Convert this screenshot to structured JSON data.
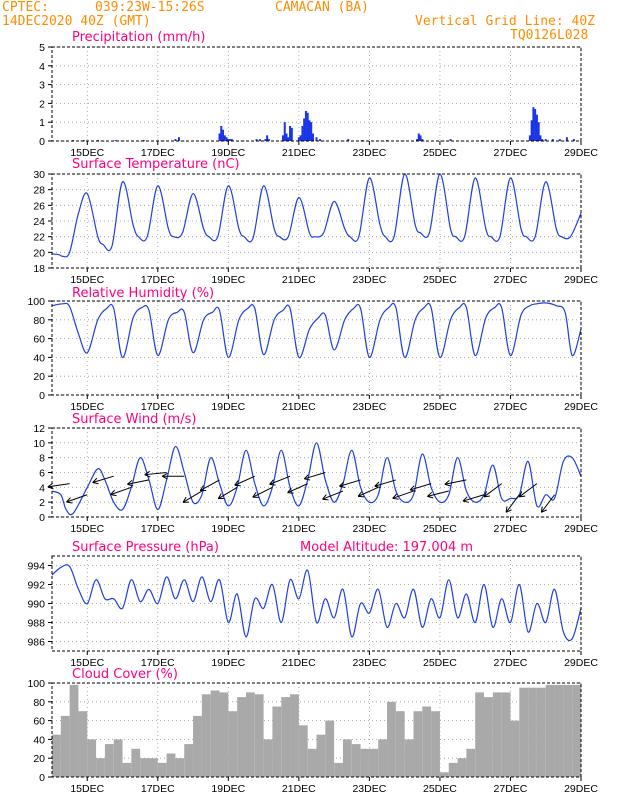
{
  "header": {
    "center": "CPTEC:",
    "coords": "039:23W-15:26S",
    "location": "CAMACAN (BA)",
    "run": "14DEC2020 40Z (GMT)",
    "grid_note": "Vertical Grid Line: 40Z",
    "product_code": "TQ0126L028"
  },
  "colors": {
    "line": "#1f3fe0",
    "bars_precip": "#1a35e8",
    "bars_cloud": "#a9a9a9",
    "header": "#ff8c00",
    "titles": "#ff0080"
  },
  "x_axis": {
    "labels": [
      "15DEC",
      "17DEC",
      "19DEC",
      "21DEC",
      "23DEC",
      "25DEC",
      "27DEC",
      "29DEC"
    ],
    "label_days": [
      15,
      17,
      19,
      21,
      23,
      25,
      27,
      29
    ],
    "day_start": 14.0,
    "day_end": 29.0
  },
  "chart_data": [
    {
      "type": "bar",
      "title": "Precipitation (mm/h)",
      "ylim": [
        0,
        5
      ],
      "yticks": [
        0,
        1,
        2,
        3,
        4,
        5
      ],
      "days": [
        14.6,
        14.9,
        15.3,
        15.8,
        16.6,
        17.5,
        17.6,
        18.75,
        18.8,
        18.85,
        18.9,
        18.95,
        19.0,
        19.05,
        19.1,
        19.8,
        19.9,
        20.05,
        20.1,
        20.15,
        20.55,
        20.6,
        20.65,
        20.7,
        20.75,
        20.8,
        21.0,
        21.05,
        21.1,
        21.15,
        21.2,
        21.25,
        21.3,
        21.35,
        21.4,
        21.5,
        21.6,
        22.4,
        22.8,
        23.5,
        24.35,
        24.4,
        24.45,
        24.5,
        25.3,
        26.2,
        27.55,
        27.6,
        27.65,
        27.7,
        27.75,
        27.8,
        27.85,
        27.9,
        28.0,
        28.2,
        28.4,
        28.6,
        28.8
      ],
      "values": [
        0.05,
        0.05,
        0.05,
        0.05,
        0.05,
        0.1,
        0.2,
        0.4,
        0.8,
        0.6,
        0.3,
        0.2,
        0.1,
        0.1,
        0.1,
        0.1,
        0.1,
        0.1,
        0.3,
        0.1,
        0.3,
        1.0,
        0.4,
        0.2,
        0.8,
        0.7,
        0.2,
        0.3,
        0.8,
        1.2,
        1.6,
        1.5,
        1.1,
        1.0,
        0.4,
        0.2,
        0.1,
        0.1,
        0.05,
        0.05,
        0.1,
        0.4,
        0.3,
        0.1,
        0.1,
        0.05,
        0.3,
        1.1,
        1.8,
        1.7,
        1.4,
        1.0,
        0.3,
        0.1,
        0.1,
        0.1,
        0.1,
        0.2,
        0.1
      ]
    },
    {
      "type": "line",
      "title": "Surface Temperature (nC)",
      "ylim": [
        18,
        30
      ],
      "yticks": [
        18,
        20,
        22,
        24,
        26,
        28,
        30
      ],
      "days": [
        14.0,
        14.2,
        14.3,
        14.5,
        14.75,
        15.0,
        15.3,
        15.45,
        15.7,
        16.0,
        16.3,
        16.45,
        16.7,
        17.0,
        17.3,
        17.45,
        17.7,
        18.0,
        18.3,
        18.45,
        18.7,
        19.0,
        19.3,
        19.45,
        19.7,
        20.0,
        20.3,
        20.45,
        20.7,
        21.0,
        21.3,
        21.45,
        21.7,
        22.0,
        22.3,
        22.45,
        22.7,
        23.0,
        23.3,
        23.45,
        23.7,
        24.0,
        24.3,
        24.45,
        24.7,
        25.0,
        25.3,
        25.45,
        25.7,
        26.0,
        26.3,
        26.45,
        26.7,
        27.0,
        27.3,
        27.45,
        27.7,
        28.0,
        28.3,
        28.45,
        28.7,
        29.0
      ],
      "values": [
        19.8,
        19.7,
        19.5,
        20.0,
        25.0,
        27.5,
        22.0,
        21.0,
        20.8,
        29.0,
        23.5,
        22.0,
        22.0,
        28.5,
        23.0,
        22.0,
        22.5,
        27.5,
        23.0,
        22.0,
        22.0,
        28.5,
        23.0,
        22.0,
        21.8,
        28.5,
        23.0,
        22.0,
        22.0,
        27.0,
        22.5,
        22.0,
        22.5,
        26.5,
        23.0,
        22.0,
        22.0,
        29.5,
        23.5,
        22.0,
        22.0,
        30.0,
        23.5,
        22.5,
        22.5,
        30.0,
        23.0,
        22.0,
        22.0,
        29.5,
        23.0,
        22.0,
        22.0,
        29.5,
        23.0,
        22.0,
        22.0,
        29.0,
        23.0,
        22.0,
        22.0,
        25.0
      ]
    },
    {
      "type": "line",
      "title": "Relative Humidity (%)",
      "ylim": [
        0,
        100
      ],
      "yticks": [
        0,
        20,
        40,
        60,
        80,
        100
      ],
      "days": [
        14.0,
        14.3,
        14.5,
        14.75,
        15.0,
        15.3,
        15.55,
        15.75,
        16.0,
        16.3,
        16.55,
        16.75,
        17.0,
        17.3,
        17.55,
        17.75,
        18.0,
        18.3,
        18.55,
        18.75,
        19.0,
        19.3,
        19.55,
        19.75,
        20.0,
        20.3,
        20.55,
        20.75,
        21.0,
        21.3,
        21.55,
        21.75,
        22.0,
        22.3,
        22.55,
        22.75,
        23.0,
        23.3,
        23.55,
        23.75,
        24.0,
        24.3,
        24.55,
        24.75,
        25.0,
        25.3,
        25.55,
        25.75,
        26.0,
        26.3,
        26.55,
        26.75,
        27.0,
        27.3,
        27.55,
        27.75,
        28.0,
        28.3,
        28.55,
        28.75,
        29.0
      ],
      "values": [
        95,
        97,
        94,
        65,
        45,
        80,
        92,
        92,
        40,
        82,
        93,
        90,
        42,
        80,
        88,
        88,
        45,
        80,
        88,
        90,
        40,
        80,
        92,
        92,
        43,
        80,
        90,
        92,
        40,
        70,
        82,
        85,
        48,
        80,
        92,
        92,
        40,
        80,
        93,
        93,
        40,
        80,
        93,
        93,
        40,
        80,
        93,
        93,
        42,
        82,
        93,
        93,
        42,
        85,
        95,
        97,
        98,
        95,
        88,
        42,
        70
      ]
    },
    {
      "type": "line",
      "title": "Surface Wind (m/s)",
      "ylim": [
        0,
        12
      ],
      "yticks": [
        0,
        2,
        4,
        6,
        8,
        10,
        12
      ],
      "days": [
        14.0,
        14.25,
        14.4,
        14.6,
        15.0,
        15.3,
        15.5,
        15.75,
        16.0,
        16.25,
        16.5,
        16.75,
        17.0,
        17.25,
        17.5,
        17.75,
        18.0,
        18.25,
        18.5,
        18.75,
        19.0,
        19.25,
        19.5,
        19.75,
        20.0,
        20.25,
        20.5,
        20.75,
        21.0,
        21.25,
        21.5,
        21.75,
        22.0,
        22.25,
        22.5,
        22.75,
        23.0,
        23.25,
        23.5,
        23.75,
        24.0,
        24.25,
        24.5,
        24.75,
        25.0,
        25.25,
        25.5,
        25.75,
        26.0,
        26.25,
        26.5,
        26.75,
        27.0,
        27.25,
        27.5,
        27.75,
        28.0,
        28.25,
        28.5,
        28.75,
        29.0
      ],
      "values": [
        3.5,
        3.0,
        1.0,
        0.5,
        4.0,
        6.5,
        5.0,
        2.0,
        1.0,
        4.0,
        8.0,
        5.0,
        1.0,
        5.0,
        9.5,
        6.0,
        2.0,
        3.0,
        8.0,
        4.5,
        1.5,
        4.0,
        9.0,
        4.5,
        1.5,
        4.0,
        9.0,
        4.0,
        1.5,
        5.0,
        10.0,
        5.0,
        2.0,
        4.5,
        9.0,
        4.0,
        2.0,
        3.0,
        8.0,
        3.5,
        2.0,
        3.0,
        8.5,
        4.0,
        2.0,
        3.0,
        8.0,
        3.5,
        2.0,
        3.0,
        7.0,
        2.5,
        2.5,
        3.0,
        7.5,
        1.5,
        3.0,
        2.5,
        7.5,
        8.0,
        5.5
      ],
      "vectors": {
        "days": [
          14.5,
          15.0,
          15.75,
          16.25,
          16.75,
          17.25,
          17.75,
          18.25,
          18.75,
          19.25,
          19.75,
          20.25,
          20.75,
          21.25,
          21.75,
          22.25,
          22.75,
          23.25,
          23.75,
          24.25,
          24.75,
          25.25,
          25.75,
          26.25,
          26.75,
          27.25,
          27.75,
          28.25
        ],
        "speed": [
          4.5,
          3.0,
          5.5,
          4.0,
          5.0,
          6.0,
          5.5,
          3.5,
          5.0,
          4.0,
          5.5,
          4.0,
          5.5,
          4.5,
          6.0,
          3.5,
          5.0,
          4.0,
          5.0,
          3.5,
          4.5,
          3.5,
          5.0,
          3.0,
          4.5,
          3.0,
          4.5,
          3.0
        ],
        "dx": [
          -1,
          -1,
          -1,
          -1,
          -1,
          -1,
          -1,
          -1,
          -1,
          -1,
          -1,
          -1,
          -1,
          -1,
          -1,
          -1,
          -1,
          -1,
          -1,
          -1,
          -1,
          -1,
          -1,
          -1,
          -0.8,
          -0.6,
          -0.8,
          -0.6
        ],
        "dy": [
          -0.15,
          -0.35,
          -0.3,
          -0.35,
          -0.2,
          -0.1,
          0.0,
          -0.6,
          -0.55,
          -0.6,
          -0.45,
          -0.5,
          -0.4,
          -0.45,
          -0.3,
          -0.4,
          -0.3,
          -0.45,
          -0.3,
          -0.35,
          -0.3,
          -0.25,
          -0.2,
          -0.3,
          -0.6,
          -0.8,
          -0.6,
          -0.8
        ]
      }
    },
    {
      "type": "line",
      "title": "Surface Pressure (hPa)",
      "subtitle": "Model Altitude: 197.004 m",
      "ylim": [
        985,
        995
      ],
      "yticks": [
        986,
        988,
        990,
        992,
        994
      ],
      "days": [
        14.0,
        14.25,
        14.5,
        14.75,
        15.0,
        15.25,
        15.5,
        15.75,
        16.0,
        16.25,
        16.5,
        16.75,
        17.0,
        17.25,
        17.5,
        17.75,
        18.0,
        18.25,
        18.5,
        18.75,
        19.0,
        19.25,
        19.5,
        19.75,
        20.0,
        20.25,
        20.5,
        20.75,
        21.0,
        21.25,
        21.5,
        21.75,
        22.0,
        22.25,
        22.5,
        22.75,
        23.0,
        23.25,
        23.5,
        23.75,
        24.0,
        24.25,
        24.5,
        24.75,
        25.0,
        25.25,
        25.5,
        25.75,
        26.0,
        26.25,
        26.5,
        26.75,
        27.0,
        27.25,
        27.5,
        27.75,
        28.0,
        28.25,
        28.5,
        28.75,
        29.0
      ],
      "values": [
        993.0,
        993.8,
        993.9,
        991.5,
        990.0,
        992.5,
        990.5,
        990.5,
        989.5,
        992.5,
        990.2,
        991.5,
        990.0,
        992.8,
        990.5,
        992.5,
        990.2,
        992.8,
        990.2,
        992.5,
        988.0,
        991.0,
        986.5,
        990.5,
        989.5,
        992.0,
        988.0,
        992.5,
        990.5,
        993.5,
        988.0,
        990.5,
        988.5,
        991.5,
        986.5,
        990.0,
        989.0,
        991.5,
        987.5,
        990.0,
        988.5,
        991.5,
        987.5,
        990.5,
        988.5,
        992.5,
        988.5,
        991.0,
        988.0,
        992.0,
        987.5,
        990.5,
        988.0,
        992.0,
        987.0,
        990.0,
        988.0,
        991.5,
        987.0,
        986.3,
        989.5
      ]
    },
    {
      "type": "bar",
      "title": "Cloud Cover (%)",
      "ylim": [
        0,
        100
      ],
      "yticks": [
        0,
        20,
        40,
        60,
        80,
        100
      ],
      "days": [
        14.0,
        14.25,
        14.5,
        14.75,
        15.0,
        15.25,
        15.5,
        15.75,
        16.0,
        16.25,
        16.5,
        16.75,
        17.0,
        17.25,
        17.5,
        17.75,
        18.0,
        18.25,
        18.5,
        18.75,
        19.0,
        19.25,
        19.5,
        19.75,
        20.0,
        20.25,
        20.5,
        20.75,
        21.0,
        21.25,
        21.5,
        21.75,
        22.0,
        22.25,
        22.5,
        22.75,
        23.0,
        23.25,
        23.5,
        23.75,
        24.0,
        24.25,
        24.5,
        24.75,
        25.0,
        25.25,
        25.5,
        25.75,
        26.0,
        26.25,
        26.5,
        26.75,
        27.0,
        27.25,
        27.5,
        27.75,
        28.0,
        28.25,
        28.5,
        28.75
      ],
      "values": [
        45,
        65,
        98,
        70,
        40,
        20,
        35,
        40,
        15,
        30,
        20,
        20,
        15,
        25,
        20,
        35,
        65,
        88,
        92,
        90,
        70,
        85,
        90,
        88,
        40,
        75,
        85,
        88,
        55,
        30,
        45,
        60,
        15,
        40,
        35,
        30,
        30,
        40,
        80,
        70,
        40,
        70,
        75,
        70,
        5,
        15,
        20,
        30,
        90,
        85,
        90,
        90,
        60,
        95,
        95,
        95,
        98,
        98,
        98,
        98
      ]
    }
  ]
}
